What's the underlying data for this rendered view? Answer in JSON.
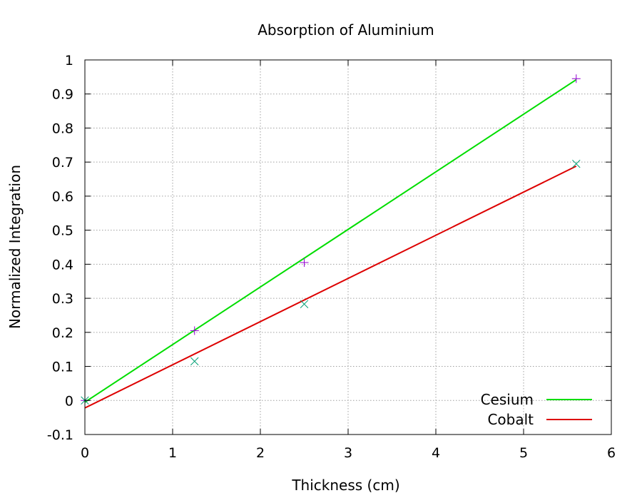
{
  "chart_data": {
    "type": "scatter",
    "title": "Absorption of Aluminium",
    "xlabel": "Thickness (cm)",
    "ylabel": "Normalized Integration",
    "xlim": [
      0,
      6
    ],
    "ylim": [
      -0.1,
      1
    ],
    "xticks": [
      0,
      1,
      2,
      3,
      4,
      5,
      6
    ],
    "xtick_labels": [
      "0",
      "1",
      "2",
      "3",
      "4",
      "5",
      "6"
    ],
    "yticks": [
      -0.1,
      0,
      0.1,
      0.2,
      0.3,
      0.4,
      0.5,
      0.6,
      0.7,
      0.8,
      0.9,
      1
    ],
    "ytick_labels": [
      "-0.1",
      "0",
      "0.1",
      "0.2",
      "0.3",
      "0.4",
      "0.5",
      "0.6",
      "0.7",
      "0.8",
      "0.9",
      "1"
    ],
    "grid": true,
    "legend_position": "bottom-right",
    "series": [
      {
        "name": "Cesium",
        "marker": "plus",
        "marker_color": "#9400d3",
        "points": [
          {
            "x": 0,
            "y": 0
          },
          {
            "x": 1.25,
            "y": 0.205
          },
          {
            "x": 2.5,
            "y": 0.405
          },
          {
            "x": 5.6,
            "y": 0.945
          }
        ],
        "fit_color": "#00dd00",
        "fit": [
          {
            "x": 0,
            "y": -0.005
          },
          {
            "x": 5.6,
            "y": 0.942
          }
        ]
      },
      {
        "name": "Cobalt",
        "marker": "cross",
        "marker_color": "#009e73",
        "points": [
          {
            "x": 0,
            "y": 0
          },
          {
            "x": 1.25,
            "y": 0.115
          },
          {
            "x": 2.5,
            "y": 0.283
          },
          {
            "x": 5.6,
            "y": 0.695
          }
        ],
        "fit_color": "#dd0000",
        "fit": [
          {
            "x": 0,
            "y": -0.022
          },
          {
            "x": 5.6,
            "y": 0.688
          }
        ]
      }
    ]
  }
}
